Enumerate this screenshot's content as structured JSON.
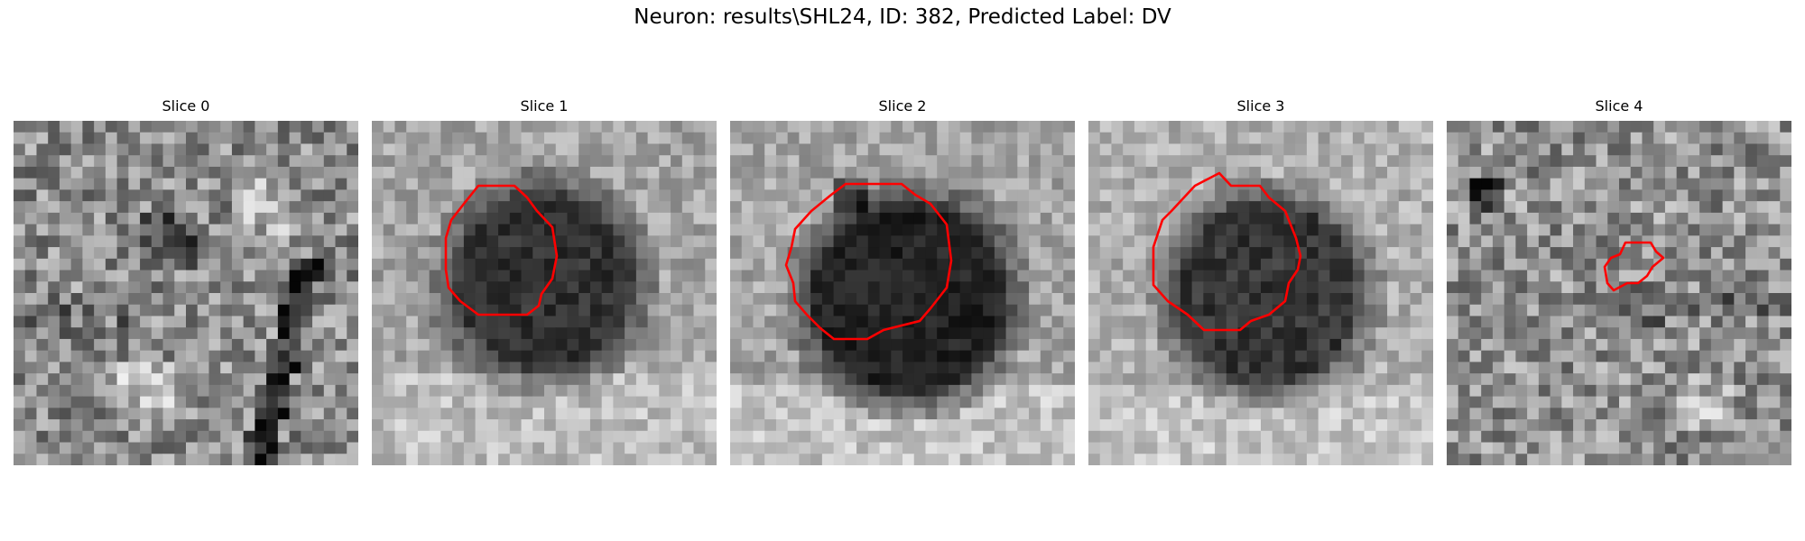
{
  "figure": {
    "title": "Neuron: results\\SHL24, ID: 382, Predicted Label: DV"
  },
  "colors": {
    "contour": "#ff0000",
    "background": "#ffffff"
  },
  "panels": [
    {
      "title": "Slice 0",
      "has_contour": false,
      "pattern": "noise-dark-veins"
    },
    {
      "title": "Slice 1",
      "has_contour": true,
      "pattern": "dark-cell-body"
    },
    {
      "title": "Slice 2",
      "has_contour": true,
      "pattern": "dark-cell-body"
    },
    {
      "title": "Slice 3",
      "has_contour": true,
      "pattern": "dark-cell-body"
    },
    {
      "title": "Slice 4",
      "has_contour": true,
      "pattern": "noise-small-blob"
    }
  ]
}
